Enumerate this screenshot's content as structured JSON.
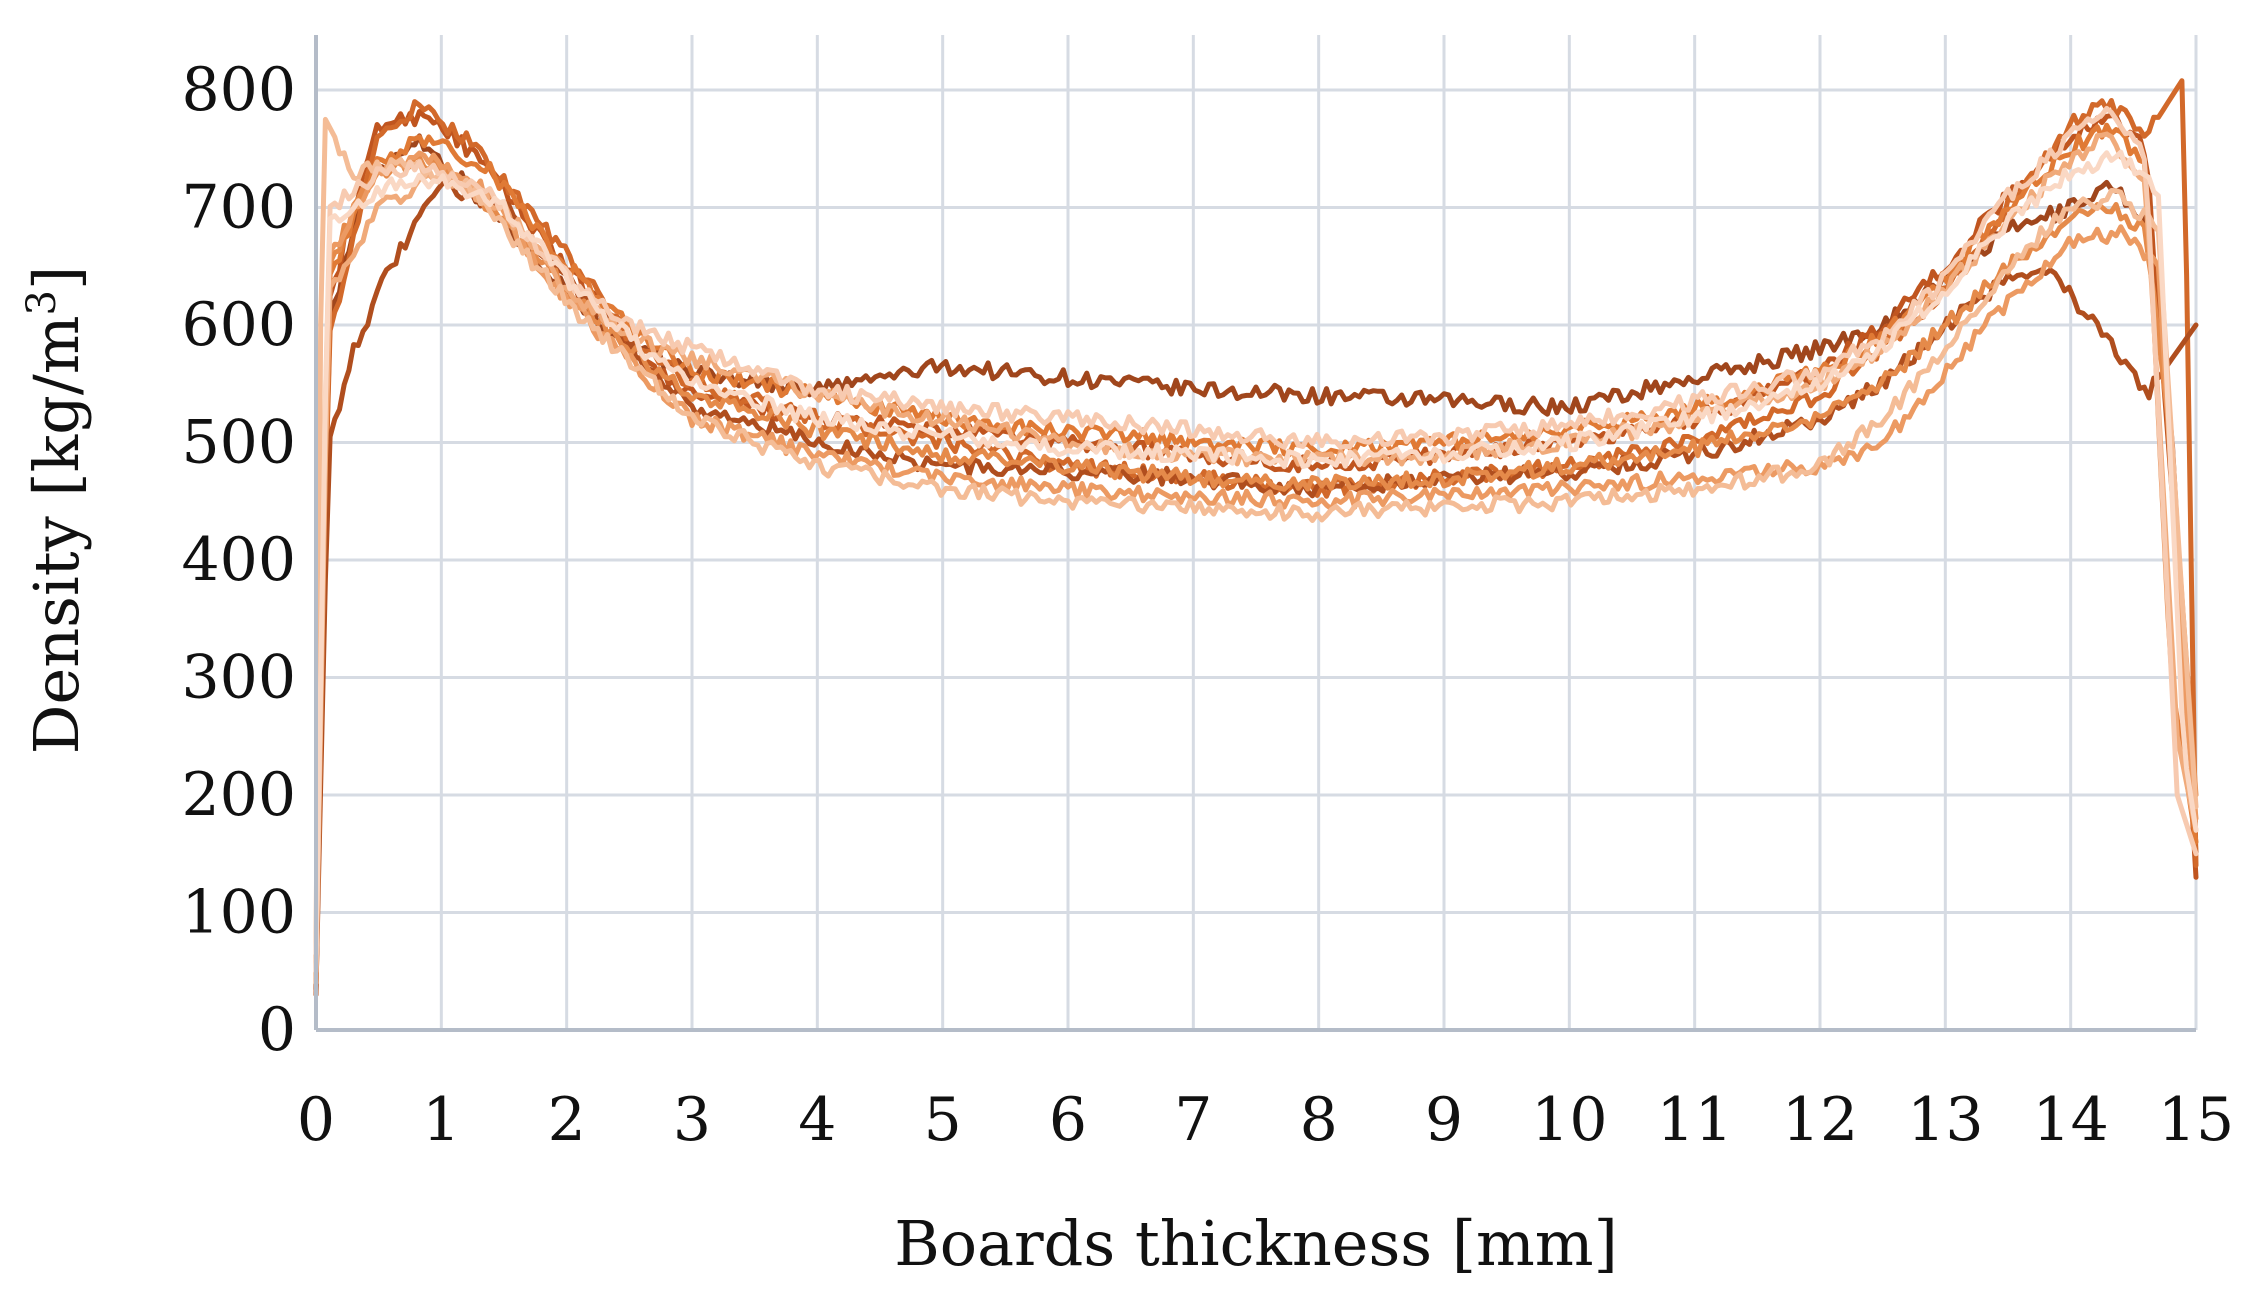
{
  "chart_data": {
    "type": "line",
    "title": "",
    "xlabel": "Boards thickness [mm]",
    "ylabel_main": "Density [kg/m",
    "ylabel_sup": "3",
    "ylabel_end": "]",
    "xlim": [
      0,
      15
    ],
    "ylim": [
      0,
      800
    ],
    "x_ticks": [
      "0",
      "1",
      "2",
      "3",
      "4",
      "5",
      "6",
      "7",
      "8",
      "9",
      "10",
      "11",
      "12",
      "13",
      "14",
      "15"
    ],
    "y_ticks": [
      "0",
      "100",
      "200",
      "300",
      "400",
      "500",
      "600",
      "700",
      "800"
    ],
    "grid": true,
    "legend": "none",
    "series": [
      {
        "color": "#a0461c",
        "points": [
          [
            0,
            40
          ],
          [
            0.1,
            600
          ],
          [
            0.4,
            720
          ],
          [
            0.8,
            760
          ],
          [
            1.2,
            720
          ],
          [
            2,
            630
          ],
          [
            2.5,
            580
          ],
          [
            3,
            560
          ],
          [
            4,
            545
          ],
          [
            5,
            565
          ],
          [
            6,
            555
          ],
          [
            7,
            545
          ],
          [
            8,
            540
          ],
          [
            9,
            535
          ],
          [
            10,
            530
          ],
          [
            11,
            555
          ],
          [
            12,
            580
          ],
          [
            12.5,
            600
          ],
          [
            13,
            640
          ],
          [
            13.5,
            680
          ],
          [
            14,
            700
          ],
          [
            14.3,
            720
          ],
          [
            14.6,
            690
          ],
          [
            14.8,
            520
          ],
          [
            15,
            150
          ]
        ]
      },
      {
        "color": "#c0551f",
        "points": [
          [
            0,
            30
          ],
          [
            0.1,
            620
          ],
          [
            0.5,
            770
          ],
          [
            0.9,
            780
          ],
          [
            1.3,
            740
          ],
          [
            2,
            650
          ],
          [
            2.6,
            570
          ],
          [
            3,
            540
          ],
          [
            4,
            520
          ],
          [
            5,
            510
          ],
          [
            6,
            500
          ],
          [
            7,
            490
          ],
          [
            8,
            480
          ],
          [
            9,
            490
          ],
          [
            10,
            500
          ],
          [
            11,
            520
          ],
          [
            12,
            560
          ],
          [
            12.5,
            600
          ],
          [
            13,
            650
          ],
          [
            13.5,
            710
          ],
          [
            14,
            760
          ],
          [
            14.3,
            780
          ],
          [
            14.6,
            750
          ],
          [
            14.85,
            400
          ],
          [
            15,
            130
          ]
        ]
      },
      {
        "color": "#d2692a",
        "points": [
          [
            0,
            50
          ],
          [
            0.1,
            590
          ],
          [
            0.5,
            760
          ],
          [
            0.8,
            785
          ],
          [
            1.2,
            760
          ],
          [
            2,
            660
          ],
          [
            2.5,
            590
          ],
          [
            3,
            550
          ],
          [
            4,
            520
          ],
          [
            5,
            500
          ],
          [
            6,
            480
          ],
          [
            7,
            470
          ],
          [
            8,
            460
          ],
          [
            9,
            470
          ],
          [
            10,
            480
          ],
          [
            11,
            500
          ],
          [
            12,
            540
          ],
          [
            12.5,
            580
          ],
          [
            13,
            630
          ],
          [
            13.5,
            700
          ],
          [
            14,
            770
          ],
          [
            14.3,
            790
          ],
          [
            14.6,
            760
          ],
          [
            14.9,
            810
          ],
          [
            15,
            140
          ]
        ]
      },
      {
        "color": "#b04e1e",
        "points": [
          [
            0,
            35
          ],
          [
            0.1,
            500
          ],
          [
            0.3,
            580
          ],
          [
            0.6,
            650
          ],
          [
            1,
            720
          ],
          [
            1.5,
            700
          ],
          [
            2,
            640
          ],
          [
            2.6,
            570
          ],
          [
            3,
            530
          ],
          [
            4,
            500
          ],
          [
            5,
            480
          ],
          [
            6,
            475
          ],
          [
            7,
            470
          ],
          [
            8,
            460
          ],
          [
            9,
            470
          ],
          [
            10,
            475
          ],
          [
            11,
            490
          ],
          [
            12,
            520
          ],
          [
            12.5,
            550
          ],
          [
            13,
            600
          ],
          [
            13.5,
            640
          ],
          [
            13.8,
            650
          ],
          [
            14.2,
            600
          ],
          [
            14.6,
            540
          ],
          [
            15,
            600
          ]
        ]
      },
      {
        "color": "#e07a35",
        "points": [
          [
            0,
            45
          ],
          [
            0.1,
            640
          ],
          [
            0.5,
            740
          ],
          [
            0.9,
            760
          ],
          [
            1.4,
            730
          ],
          [
            2,
            650
          ],
          [
            2.6,
            590
          ],
          [
            3,
            560
          ],
          [
            4,
            540
          ],
          [
            5,
            520
          ],
          [
            6,
            510
          ],
          [
            7,
            500
          ],
          [
            8,
            495
          ],
          [
            9,
            500
          ],
          [
            10,
            510
          ],
          [
            11,
            530
          ],
          [
            12,
            560
          ],
          [
            12.5,
            590
          ],
          [
            13,
            640
          ],
          [
            13.5,
            700
          ],
          [
            14,
            750
          ],
          [
            14.3,
            770
          ],
          [
            14.6,
            740
          ],
          [
            14.8,
            300
          ],
          [
            15,
            160
          ]
        ]
      },
      {
        "color": "#e58a4a",
        "points": [
          [
            0,
            55
          ],
          [
            0.1,
            650
          ],
          [
            0.4,
            720
          ],
          [
            0.8,
            740
          ],
          [
            1.2,
            720
          ],
          [
            2,
            630
          ],
          [
            2.6,
            570
          ],
          [
            3,
            540
          ],
          [
            4,
            510
          ],
          [
            5,
            490
          ],
          [
            6,
            480
          ],
          [
            7,
            470
          ],
          [
            8,
            465
          ],
          [
            9,
            470
          ],
          [
            10,
            480
          ],
          [
            11,
            495
          ],
          [
            12,
            520
          ],
          [
            12.5,
            550
          ],
          [
            13,
            600
          ],
          [
            13.5,
            650
          ],
          [
            14,
            690
          ],
          [
            14.3,
            700
          ],
          [
            14.6,
            680
          ],
          [
            14.8,
            500
          ],
          [
            15,
            200
          ]
        ]
      },
      {
        "color": "#ec9a62",
        "points": [
          [
            0,
            60
          ],
          [
            0.1,
            660
          ],
          [
            0.5,
            730
          ],
          [
            0.9,
            745
          ],
          [
            1.3,
            720
          ],
          [
            2,
            620
          ],
          [
            2.6,
            560
          ],
          [
            3,
            520
          ],
          [
            4,
            490
          ],
          [
            5,
            470
          ],
          [
            6,
            460
          ],
          [
            7,
            455
          ],
          [
            8,
            450
          ],
          [
            9,
            455
          ],
          [
            10,
            460
          ],
          [
            11,
            470
          ],
          [
            12,
            480
          ],
          [
            12.5,
            500
          ],
          [
            13,
            560
          ],
          [
            13.5,
            620
          ],
          [
            14,
            670
          ],
          [
            14.4,
            680
          ],
          [
            14.7,
            650
          ],
          [
            14.9,
            300
          ],
          [
            15,
            180
          ]
        ]
      },
      {
        "color": "#f0aa7a",
        "points": [
          [
            0,
            40
          ],
          [
            0.1,
            630
          ],
          [
            0.5,
            700
          ],
          [
            1,
            730
          ],
          [
            1.5,
            700
          ],
          [
            2,
            630
          ],
          [
            2.5,
            590
          ],
          [
            3,
            570
          ],
          [
            3.5,
            560
          ],
          [
            4,
            540
          ],
          [
            5,
            520
          ],
          [
            6,
            500
          ],
          [
            7,
            490
          ],
          [
            8,
            485
          ],
          [
            9,
            490
          ],
          [
            10,
            500
          ],
          [
            11,
            520
          ],
          [
            12,
            550
          ],
          [
            12.5,
            580
          ],
          [
            13,
            630
          ],
          [
            13.5,
            690
          ],
          [
            14,
            740
          ],
          [
            14.3,
            760
          ],
          [
            14.6,
            720
          ],
          [
            14.85,
            250
          ],
          [
            15,
            170
          ]
        ]
      },
      {
        "color": "#f4bc96",
        "points": [
          [
            0,
            70
          ],
          [
            0.05,
            780
          ],
          [
            0.3,
            730
          ],
          [
            0.7,
            740
          ],
          [
            1.2,
            720
          ],
          [
            2,
            620
          ],
          [
            2.6,
            560
          ],
          [
            3,
            520
          ],
          [
            4,
            480
          ],
          [
            5,
            460
          ],
          [
            6,
            450
          ],
          [
            7,
            445
          ],
          [
            8,
            440
          ],
          [
            9,
            445
          ],
          [
            10,
            450
          ],
          [
            11,
            460
          ],
          [
            12,
            480
          ],
          [
            12.5,
            520
          ],
          [
            13,
            580
          ],
          [
            13.5,
            650
          ],
          [
            14,
            700
          ],
          [
            14.4,
            710
          ],
          [
            14.7,
            680
          ],
          [
            14.9,
            350
          ],
          [
            15,
            190
          ]
        ]
      },
      {
        "color": "#f7cab0",
        "points": [
          [
            0,
            50
          ],
          [
            0.1,
            700
          ],
          [
            0.5,
            730
          ],
          [
            0.9,
            735
          ],
          [
            1.4,
            710
          ],
          [
            2,
            640
          ],
          [
            2.5,
            600
          ],
          [
            3,
            580
          ],
          [
            3.5,
            560
          ],
          [
            4,
            545
          ],
          [
            5,
            530
          ],
          [
            6,
            520
          ],
          [
            7,
            510
          ],
          [
            8,
            500
          ],
          [
            9,
            505
          ],
          [
            10,
            515
          ],
          [
            11,
            535
          ],
          [
            12,
            560
          ],
          [
            12.5,
            590
          ],
          [
            13,
            640
          ],
          [
            13.5,
            710
          ],
          [
            14,
            760
          ],
          [
            14.3,
            790
          ],
          [
            14.6,
            740
          ],
          [
            14.85,
            200
          ],
          [
            15,
            150
          ]
        ]
      },
      {
        "color": "#fad8c4",
        "points": [
          [
            0,
            65
          ],
          [
            0.1,
            690
          ],
          [
            0.6,
            720
          ],
          [
            1,
            725
          ],
          [
            1.5,
            700
          ],
          [
            2,
            640
          ],
          [
            2.6,
            580
          ],
          [
            3,
            550
          ],
          [
            4,
            520
          ],
          [
            5,
            505
          ],
          [
            6,
            495
          ],
          [
            7,
            490
          ],
          [
            8,
            485
          ],
          [
            9,
            490
          ],
          [
            10,
            500
          ],
          [
            11,
            520
          ],
          [
            12,
            550
          ],
          [
            12.5,
            580
          ],
          [
            13,
            630
          ],
          [
            13.5,
            690
          ],
          [
            14,
            730
          ],
          [
            14.4,
            745
          ],
          [
            14.7,
            710
          ],
          [
            14.9,
            240
          ],
          [
            15,
            170
          ]
        ]
      }
    ]
  }
}
